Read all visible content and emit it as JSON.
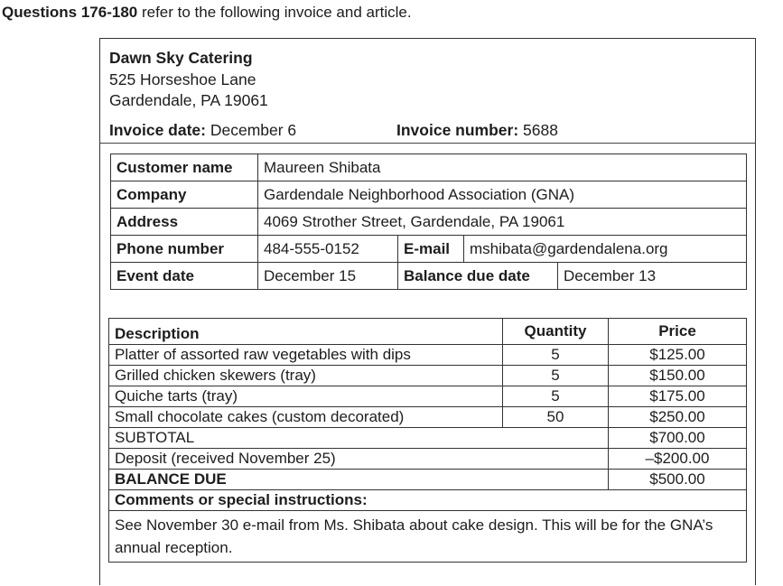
{
  "question_header": {
    "bold": "Questions 176-180",
    "rest": " refer to the following invoice and article."
  },
  "invoice": {
    "company_name": "Dawn Sky Catering",
    "address_line1": "525 Horseshoe Lane",
    "address_line2": "Gardendale, PA 19061",
    "invoice_date_label": "Invoice date:",
    "invoice_date": " December 6",
    "invoice_number_label": "Invoice number:",
    "invoice_number": " 5688"
  },
  "customer": {
    "name_label": "Customer name",
    "name": "Maureen Shibata",
    "company_label": "Company",
    "company": "Gardendale Neighborhood Association (GNA)",
    "address_label": "Address",
    "address": "4069 Strother Street, Gardendale, PA 19061",
    "phone_label": "Phone number",
    "phone": "484-555-0152",
    "email_label": "E-mail",
    "email": "mshibata@gardendalena.org",
    "event_date_label": "Event date",
    "event_date": "December 15",
    "balance_due_date_label": "Balance due date",
    "balance_due_date": "December 13"
  },
  "items": {
    "headers": {
      "description": "Description",
      "quantity": "Quantity",
      "price": "Price"
    },
    "rows": [
      {
        "description": "Platter of assorted raw vegetables with dips",
        "quantity": "5",
        "price": "$125.00"
      },
      {
        "description": "Grilled chicken skewers (tray)",
        "quantity": "5",
        "price": "$150.00"
      },
      {
        "description": "Quiche tarts (tray)",
        "quantity": "5",
        "price": "$175.00"
      },
      {
        "description": "Small chocolate cakes (custom decorated)",
        "quantity": "50",
        "price": "$250.00"
      }
    ],
    "subtotal_label": "SUBTOTAL",
    "subtotal": "$700.00",
    "deposit_label": "Deposit (received November 25)",
    "deposit": "–$200.00",
    "balance_label": "BALANCE DUE",
    "balance": "$500.00",
    "comments_label": "Comments or special instructions:",
    "comments": "See November 30 e-mail from Ms. Shibata about cake design. This will be for the GNA’s annual reception."
  }
}
